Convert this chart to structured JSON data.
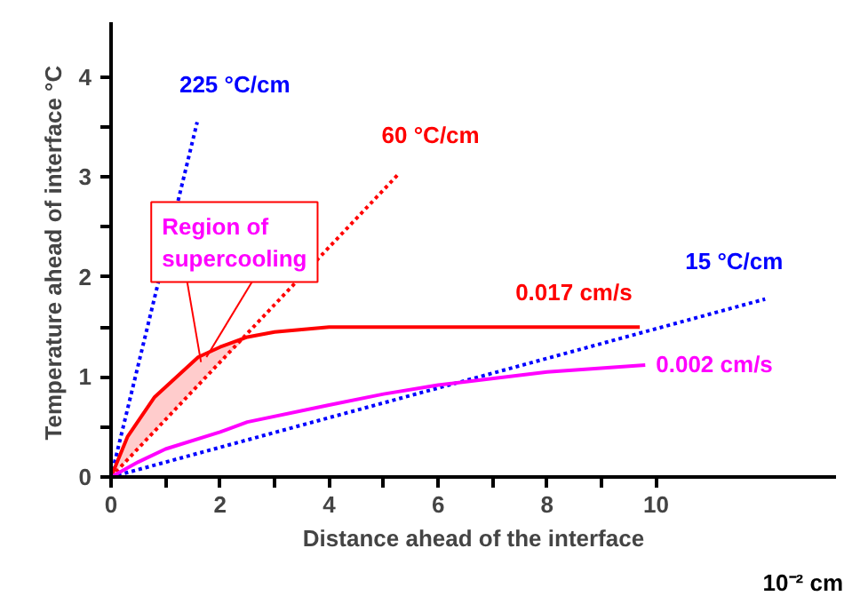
{
  "chart_data": {
    "type": "line",
    "xlabel": "Distance ahead of the interface",
    "ylabel": "Temperature ahead of interface  °C",
    "xlim": [
      0,
      13.3
    ],
    "ylim": [
      0,
      4.55
    ],
    "xticks": [
      0,
      {
        "value": 1,
        "label": null
      },
      2,
      {
        "value": 3,
        "label": null
      },
      4,
      {
        "value": 5,
        "label": null
      },
      6,
      {
        "value": 7,
        "label": null
      },
      8,
      {
        "value": 9,
        "label": null
      },
      10
    ],
    "yticks": [
      0,
      {
        "value": 0.5,
        "label": null
      },
      1,
      {
        "value": 1.5,
        "label": null
      },
      2,
      {
        "value": 2.5,
        "label": null
      },
      3,
      {
        "value": 3.5,
        "label": null
      },
      4
    ],
    "grid": false,
    "marker": "none",
    "series": [
      {
        "name": "225 °C/cm",
        "color": "#0000ff",
        "line_style": "dotted",
        "x": [
          0,
          1.58
        ],
        "values": [
          0,
          3.55
        ]
      },
      {
        "name": "60 °C/cm",
        "color": "#ff0000",
        "line_style": "dotted",
        "x": [
          0,
          5.29
        ],
        "values": [
          0,
          3.04
        ]
      },
      {
        "name": "15 °C/cm",
        "color": "#0000ff",
        "line_style": "dotted",
        "x": [
          0,
          12.0
        ],
        "values": [
          0,
          1.78
        ]
      },
      {
        "name": "0.017 cm/s",
        "color": "#ff0000",
        "line_style": "solid",
        "x": [
          0,
          0.3,
          0.8,
          1.2,
          1.6,
          2.0,
          2.5,
          3.0,
          4.0,
          9.7
        ],
        "values": [
          0,
          0.4,
          0.8,
          1.0,
          1.2,
          1.3,
          1.4,
          1.45,
          1.5,
          1.5
        ],
        "lower": [
          0,
          0.17,
          0.46,
          0.69,
          0.92,
          1.15,
          1.4,
          null,
          null,
          null
        ],
        "upper": [
          0,
          0.4,
          0.8,
          1.0,
          1.2,
          1.3,
          1.4,
          null,
          null,
          null
        ]
      },
      {
        "name": "0.002 cm/s",
        "color": "#ff00ff",
        "line_style": "solid",
        "x": [
          0,
          0.5,
          1,
          2,
          2.5,
          4,
          5,
          6,
          8,
          9.8
        ],
        "values": [
          0,
          0.15,
          0.28,
          0.45,
          0.55,
          0.72,
          0.83,
          0.92,
          1.05,
          1.12
        ]
      }
    ],
    "annotations": [
      {
        "text": "Region of\nsupercooling",
        "x": 1.65,
        "y": 1.15
      },
      "10⁻² cm"
    ]
  }
}
